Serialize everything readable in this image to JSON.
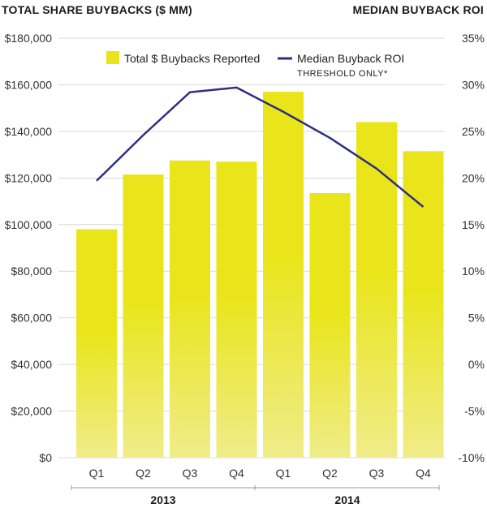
{
  "header": {
    "left_title": "TOTAL SHARE BUYBACKS ($ MM)",
    "right_title": "MEDIAN BUYBACK ROI"
  },
  "legend": {
    "bar_label": "Total $ Buybacks Reported",
    "line_label": "Median Buyback ROI",
    "line_sublabel": "THRESHOLD ONLY*"
  },
  "colors": {
    "bar": "#e9e51a",
    "bar_fade": "#f0ec8a",
    "line": "#2e2f80",
    "grid": "#d9d9d9"
  },
  "chart_data": {
    "type": "bar",
    "categories": [
      "Q1",
      "Q2",
      "Q3",
      "Q4",
      "Q1",
      "Q2",
      "Q3",
      "Q4"
    ],
    "groups": [
      {
        "label": "2013",
        "categories": [
          "Q1",
          "Q2",
          "Q3",
          "Q4"
        ]
      },
      {
        "label": "2014",
        "categories": [
          "Q1",
          "Q2",
          "Q3",
          "Q4"
        ]
      }
    ],
    "series": [
      {
        "name": "Total $ Buybacks Reported",
        "type": "bar",
        "axis": "left",
        "values": [
          98000,
          121500,
          127500,
          127000,
          157000,
          113500,
          144000,
          131500
        ]
      },
      {
        "name": "Median Buyback ROI",
        "type": "line",
        "axis": "right",
        "values": [
          19.7,
          24.6,
          29.2,
          29.7,
          27.1,
          24.3,
          21.0,
          16.9
        ]
      }
    ],
    "left_axis": {
      "title": "TOTAL SHARE BUYBACKS ($ MM)",
      "ylim": [
        0,
        180000
      ],
      "ticks": [
        0,
        20000,
        40000,
        60000,
        80000,
        100000,
        120000,
        140000,
        160000,
        180000
      ],
      "tick_labels": [
        "$0",
        "$20,000",
        "$40,000",
        "$60,000",
        "$80,000",
        "$100,000",
        "$120,000",
        "$140,000",
        "$160,000",
        "$180,000"
      ]
    },
    "right_axis": {
      "title": "MEDIAN BUYBACK ROI",
      "ylim": [
        -10,
        35
      ],
      "ticks": [
        -10,
        -5,
        0,
        5,
        10,
        15,
        20,
        25,
        30,
        35
      ],
      "tick_labels": [
        "-10%",
        "-5%",
        "0%",
        "5%",
        "10%",
        "15%",
        "20%",
        "25%",
        "30%",
        "35%"
      ]
    },
    "grid": true,
    "legend_position": "top"
  }
}
